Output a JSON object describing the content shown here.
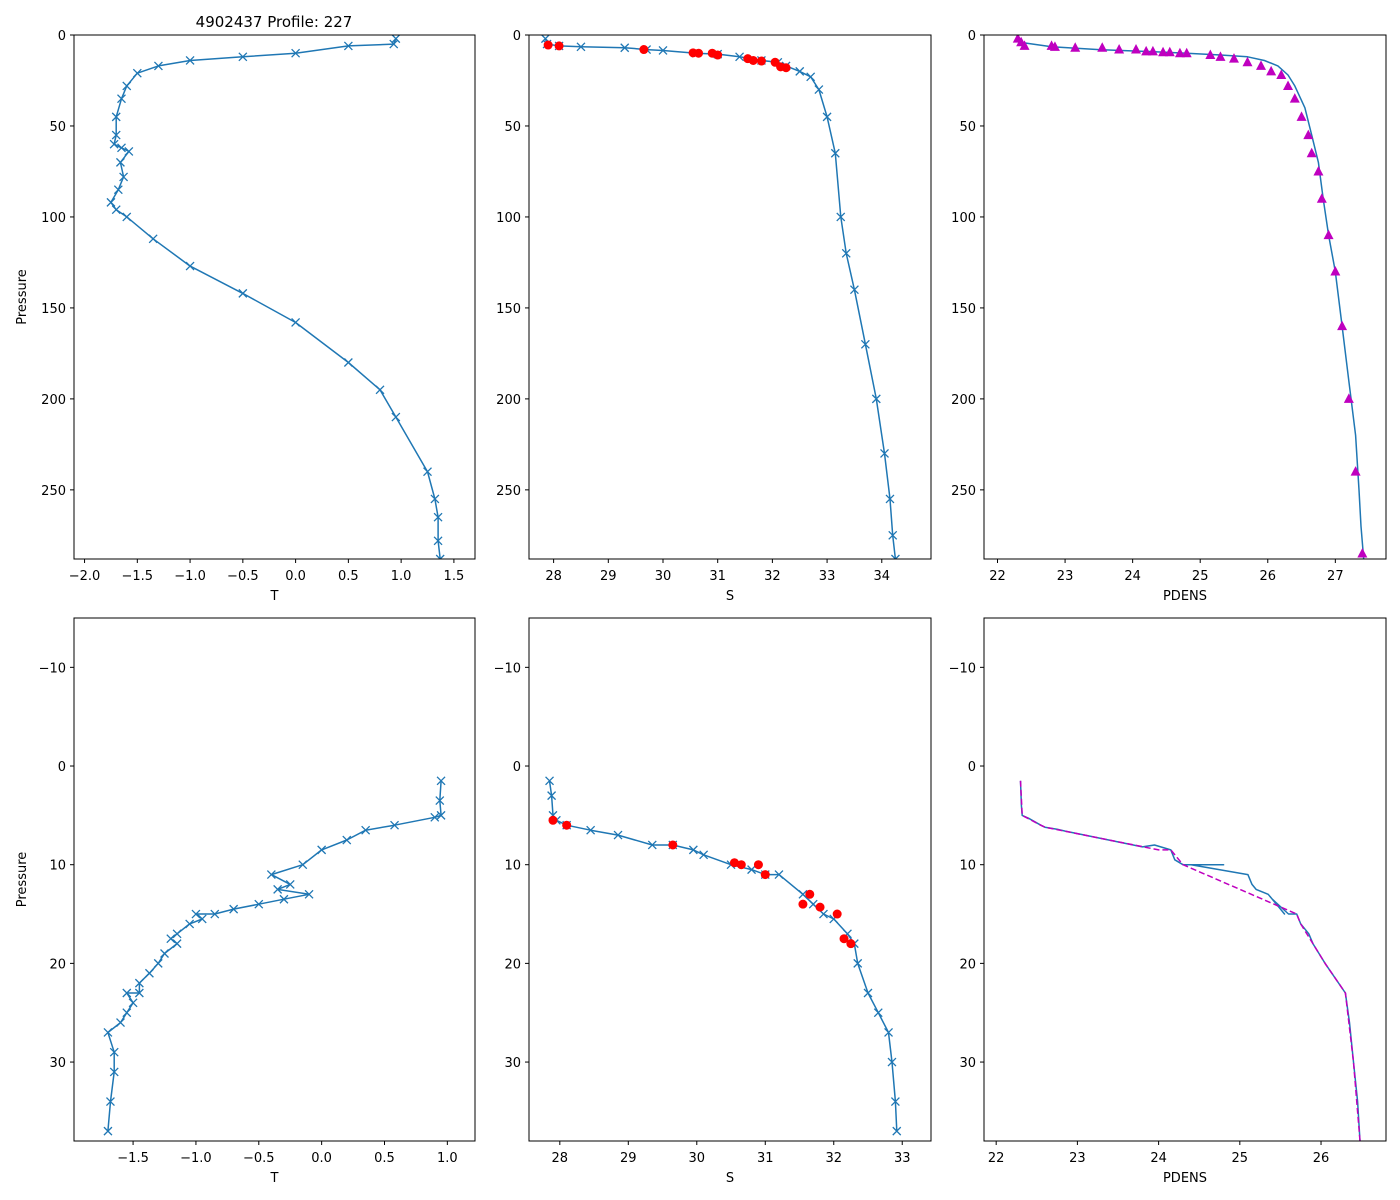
{
  "figure": {
    "title": "4902437 Profile: 227"
  },
  "colors": {
    "series": "#1f77b4",
    "flag": "#ff0000",
    "density": "#bf00bf",
    "axis": "#000000"
  },
  "chart_data": [
    {
      "id": "top-temperature",
      "type": "line",
      "xlabel": "T",
      "ylabel": "Pressure",
      "xlim": [
        -2.1,
        1.7
      ],
      "ylim": [
        288,
        0
      ],
      "xticks": [
        -2.0,
        -1.5,
        -1.0,
        -0.5,
        0.0,
        0.5,
        1.0,
        1.5
      ],
      "xticklabels": [
        "−2.0",
        "−1.5",
        "−1.0",
        "−0.5",
        "0.0",
        "0.5",
        "1.0",
        "1.5"
      ],
      "yticks": [
        0,
        50,
        100,
        150,
        200,
        250
      ],
      "yticklabels": [
        "0",
        "50",
        "100",
        "150",
        "200",
        "250"
      ],
      "series": [
        {
          "name": "T",
          "marker": "x",
          "style": "solid",
          "color": "#1f77b4",
          "x": [
            0.95,
            0.93,
            0.5,
            0.0,
            -0.5,
            -1.0,
            -1.3,
            -1.5,
            -1.6,
            -1.65,
            -1.7,
            -1.7,
            -1.72,
            -1.65,
            -1.58,
            -1.66,
            -1.63,
            -1.68,
            -1.75,
            -1.7,
            -1.6,
            -1.35,
            -1.0,
            -0.5,
            0.0,
            0.5,
            0.8,
            0.95,
            1.25,
            1.32,
            1.35,
            1.35,
            1.37
          ],
          "y": [
            2,
            5,
            6,
            10,
            12,
            14,
            17,
            21,
            28,
            35,
            45,
            55,
            60,
            62,
            64,
            70,
            78,
            85,
            92,
            96,
            100,
            112,
            127,
            142,
            158,
            180,
            195,
            210,
            240,
            255,
            265,
            278,
            288
          ]
        }
      ]
    },
    {
      "id": "top-salinity",
      "type": "line",
      "xlabel": "S",
      "ylabel": "",
      "xlim": [
        27.55,
        34.9
      ],
      "ylim": [
        288,
        0
      ],
      "xticks": [
        28,
        29,
        30,
        31,
        32,
        33,
        34
      ],
      "xticklabels": [
        "28",
        "29",
        "30",
        "31",
        "32",
        "33",
        "34"
      ],
      "yticks": [
        0,
        50,
        100,
        150,
        200,
        250
      ],
      "yticklabels": [
        "0",
        "50",
        "100",
        "150",
        "200",
        "250"
      ],
      "series": [
        {
          "name": "S",
          "marker": "x",
          "style": "solid",
          "color": "#1f77b4",
          "x": [
            27.85,
            27.88,
            28.1,
            28.5,
            29.3,
            29.7,
            30.0,
            30.6,
            31.0,
            31.4,
            31.8,
            32.1,
            32.25,
            32.5,
            32.7,
            32.85,
            33.0,
            33.15,
            33.25,
            33.35,
            33.5,
            33.7,
            33.9,
            34.05,
            34.15,
            34.2,
            34.25
          ],
          "y": [
            2,
            5,
            6,
            6.5,
            7,
            8,
            8.5,
            10,
            10.5,
            12,
            14,
            15,
            17,
            20,
            23,
            30,
            45,
            65,
            100,
            120,
            140,
            170,
            200,
            230,
            255,
            275,
            288
          ]
        },
        {
          "name": "S flagged",
          "marker": "o",
          "style": "none",
          "color": "#ff0000",
          "x": [
            27.9,
            28.1,
            29.65,
            30.55,
            30.65,
            30.9,
            31.0,
            31.55,
            31.65,
            31.8,
            32.05,
            32.15,
            32.25
          ],
          "y": [
            5.5,
            6,
            8,
            9.8,
            10,
            10,
            11,
            13,
            14,
            14.3,
            15,
            17.5,
            18
          ]
        }
      ]
    },
    {
      "id": "top-density",
      "type": "line",
      "xlabel": "PDENS",
      "ylabel": "",
      "xlim": [
        21.8,
        27.75
      ],
      "ylim": [
        288,
        0
      ],
      "xticks": [
        22,
        23,
        24,
        25,
        26,
        27
      ],
      "xticklabels": [
        "22",
        "23",
        "24",
        "25",
        "26",
        "27"
      ],
      "yticks": [
        0,
        50,
        100,
        150,
        200,
        250
      ],
      "yticklabels": [
        "0",
        "50",
        "100",
        "150",
        "200",
        "250"
      ],
      "series": [
        {
          "name": "PDENS",
          "marker": "none",
          "style": "solid",
          "color": "#1f77b4",
          "x": [
            22.3,
            22.33,
            22.8,
            23.5,
            24.2,
            24.8,
            25.3,
            25.7,
            25.95,
            26.15,
            26.3,
            26.4,
            26.55,
            26.65,
            26.75,
            26.82,
            26.9,
            27.0,
            27.1,
            27.2,
            27.3,
            27.35,
            27.38,
            27.42
          ],
          "y": [
            1,
            4,
            6.5,
            8,
            9,
            10,
            11,
            12,
            14,
            17,
            22,
            28,
            40,
            55,
            70,
            90,
            110,
            130,
            160,
            190,
            220,
            250,
            270,
            288
          ]
        },
        {
          "name": "PDENS flagged",
          "marker": "^",
          "style": "none",
          "color": "#bf00bf",
          "x": [
            22.3,
            22.35,
            22.4,
            22.8,
            22.85,
            23.15,
            23.55,
            23.8,
            24.05,
            24.2,
            24.3,
            24.45,
            24.55,
            24.7,
            24.8,
            25.15,
            25.3,
            25.5,
            25.7,
            25.9,
            26.05,
            26.2,
            26.3,
            26.4,
            26.5,
            26.6,
            26.65,
            26.75,
            26.8,
            26.9,
            27.0,
            27.1,
            27.2,
            27.3,
            27.4
          ],
          "y": [
            2,
            4,
            6,
            6,
            6.5,
            7,
            7,
            8,
            8,
            9,
            9,
            9.5,
            9.5,
            10,
            10,
            11,
            12,
            13,
            15,
            17,
            20,
            22,
            28,
            35,
            45,
            55,
            65,
            75,
            90,
            110,
            130,
            160,
            200,
            240,
            285
          ]
        }
      ]
    },
    {
      "id": "bottom-temperature",
      "type": "line",
      "xlabel": "T",
      "ylabel": "Pressure",
      "xlim": [
        -1.97,
        1.22
      ],
      "ylim": [
        38,
        -15
      ],
      "xticks": [
        -1.5,
        -1.0,
        -0.5,
        0.0,
        0.5,
        1.0
      ],
      "xticklabels": [
        "−1.5",
        "−1.0",
        "−0.5",
        "0.0",
        "0.5",
        "1.0"
      ],
      "yticks": [
        -10,
        0,
        10,
        20,
        30
      ],
      "yticklabels": [
        "−10",
        "0",
        "10",
        "20",
        "30"
      ],
      "series": [
        {
          "name": "T",
          "marker": "x",
          "style": "solid",
          "color": "#1f77b4",
          "x": [
            0.95,
            0.94,
            0.95,
            0.9,
            0.58,
            0.35,
            0.2,
            0.0,
            -0.15,
            -0.4,
            -0.25,
            -0.35,
            -0.1,
            -0.3,
            -0.5,
            -0.7,
            -0.85,
            -1.0,
            -0.95,
            -1.05,
            -1.15,
            -1.2,
            -1.15,
            -1.25,
            -1.3,
            -1.37,
            -1.45,
            -1.45,
            -1.55,
            -1.5,
            -1.55,
            -1.6,
            -1.7,
            -1.65,
            -1.65,
            -1.68,
            -1.7
          ],
          "y": [
            1.5,
            3.5,
            5,
            5.2,
            6,
            6.5,
            7.5,
            8.5,
            10,
            11,
            12,
            12.5,
            13,
            13.5,
            14,
            14.5,
            15,
            15,
            15.5,
            16,
            17,
            17.5,
            18,
            19,
            20,
            21,
            22,
            23,
            23,
            24,
            25,
            26,
            27,
            29,
            31,
            34,
            37
          ]
        }
      ]
    },
    {
      "id": "bottom-salinity",
      "type": "line",
      "xlabel": "S",
      "ylabel": "",
      "xlim": [
        27.55,
        33.42
      ],
      "ylim": [
        38,
        -15
      ],
      "xticks": [
        28,
        29,
        30,
        31,
        32,
        33
      ],
      "xticklabels": [
        "28",
        "29",
        "30",
        "31",
        "32",
        "33"
      ],
      "yticks": [
        -10,
        0,
        10,
        20,
        30
      ],
      "yticklabels": [
        "−10",
        "0",
        "10",
        "20",
        "30"
      ],
      "series": [
        {
          "name": "S",
          "marker": "x",
          "style": "solid",
          "color": "#1f77b4",
          "x": [
            27.85,
            27.88,
            27.9,
            27.95,
            28.1,
            28.45,
            28.85,
            29.35,
            29.65,
            29.95,
            30.1,
            30.5,
            30.8,
            31.0,
            31.2,
            31.55,
            31.7,
            31.85,
            32.0,
            32.2,
            32.3,
            32.35,
            32.5,
            32.65,
            32.8,
            32.85,
            32.9,
            32.92
          ],
          "y": [
            1.5,
            3,
            5,
            5.5,
            6,
            6.5,
            7,
            8,
            8,
            8.5,
            9,
            10,
            10.5,
            11,
            11,
            13,
            14,
            15,
            15.5,
            17,
            18,
            20,
            23,
            25,
            27,
            30,
            34,
            37
          ]
        },
        {
          "name": "S flagged",
          "marker": "o",
          "style": "none",
          "color": "#ff0000",
          "x": [
            27.9,
            28.1,
            29.65,
            30.55,
            30.65,
            30.9,
            31.0,
            31.55,
            31.65,
            31.8,
            32.05,
            32.15,
            32.25
          ],
          "y": [
            5.5,
            6,
            8,
            9.8,
            10,
            10,
            11,
            14,
            13,
            14.3,
            15,
            17.5,
            18
          ]
        }
      ]
    },
    {
      "id": "bottom-density",
      "type": "line",
      "xlabel": "PDENS",
      "ylabel": "",
      "xlim": [
        21.85,
        26.8
      ],
      "ylim": [
        38,
        -15
      ],
      "xticks": [
        22,
        23,
        24,
        25,
        26
      ],
      "xticklabels": [
        "22",
        "23",
        "24",
        "25",
        "26"
      ],
      "yticks": [
        -10,
        0,
        10,
        20,
        30
      ],
      "yticklabels": [
        "−10",
        "0",
        "10",
        "20",
        "30"
      ],
      "series": [
        {
          "name": "PDENS",
          "marker": "none",
          "style": "solid",
          "color": "#1f77b4",
          "x": [
            22.3,
            22.31,
            22.32,
            22.4,
            22.55,
            22.6,
            22.75,
            22.85,
            23.8,
            23.95,
            24.15,
            24.2,
            24.3,
            24.8,
            24.4,
            25.1,
            25.15,
            25.2,
            25.35,
            25.45,
            25.55,
            25.4,
            25.6,
            25.7,
            25.75,
            25.85,
            25.9,
            26.05,
            26.3,
            26.35,
            26.4,
            26.45,
            26.48
          ],
          "y": [
            1.5,
            4,
            5,
            5.3,
            6,
            6.2,
            6.4,
            6.6,
            8.2,
            8,
            8.5,
            9.5,
            10,
            10,
            10,
            11,
            12,
            12.5,
            13,
            14,
            15,
            13.5,
            15,
            15,
            16,
            17,
            18,
            20,
            23,
            26,
            30,
            34,
            38
          ]
        },
        {
          "name": "PDENS flagged",
          "marker": "none",
          "style": "dashed",
          "color": "#bf00bf",
          "x": [
            22.3,
            22.32,
            22.55,
            22.6,
            24.0,
            24.15,
            24.3,
            25.7,
            25.75,
            25.9,
            26.05,
            26.3,
            26.4,
            26.48
          ],
          "y": [
            1.5,
            5,
            6,
            6.2,
            8.5,
            8.5,
            10,
            15,
            16,
            18,
            20,
            23,
            30,
            38
          ]
        }
      ]
    }
  ]
}
